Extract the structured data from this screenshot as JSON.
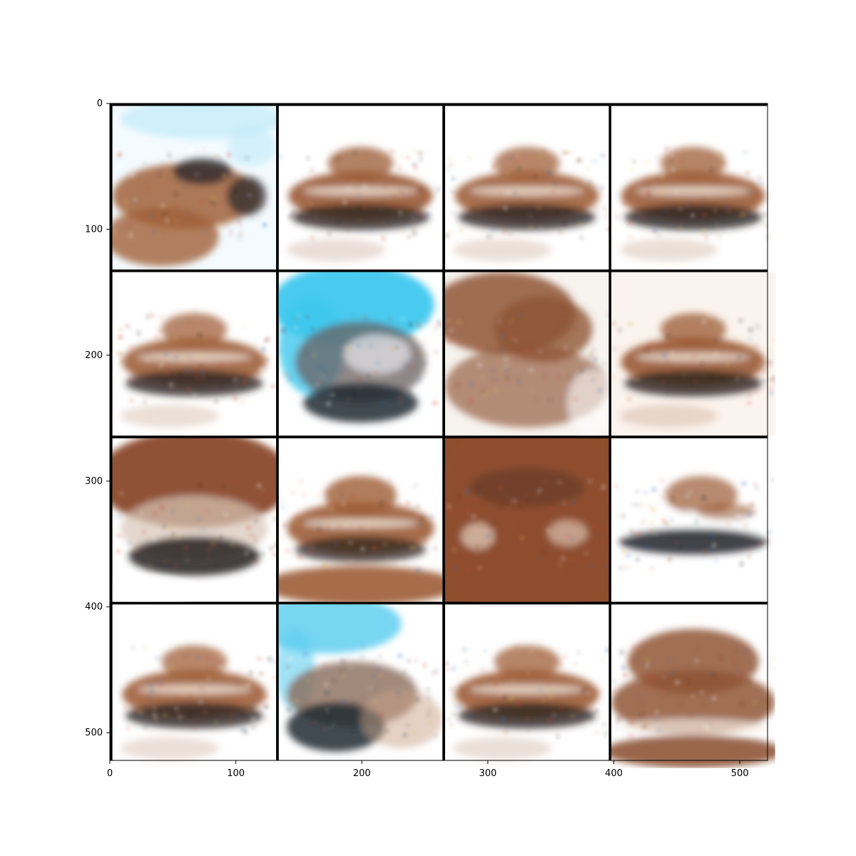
{
  "chart_data": {
    "type": "image_grid",
    "title": "",
    "xlabel": "",
    "ylabel": "",
    "xlim": [
      0,
      522
    ],
    "ylim": [
      522,
      0
    ],
    "x_ticks": [
      0,
      100,
      200,
      300,
      400,
      500
    ],
    "y_ticks": [
      0,
      100,
      200,
      300,
      400,
      500
    ],
    "grid": {
      "rows": 4,
      "cols": 4,
      "tile_size_data_units": 130,
      "padding_data_units": 2
    },
    "padding_color": "#000000",
    "tiles": [
      {
        "row": 0,
        "col": 0,
        "subject": "vehicle",
        "background": "#f4fbff",
        "sky_tint": "#bfe9f8",
        "body_color": "#a0603a",
        "dark_color": "#2c2a2c",
        "style": "blurry-car-left",
        "seed": 11
      },
      {
        "row": 0,
        "col": 1,
        "subject": "tank",
        "background": "#ffffff",
        "sky_tint": "#ffffff",
        "body_color": "#9a5a33",
        "dark_color": "#2a2320",
        "style": "tank",
        "seed": 12
      },
      {
        "row": 0,
        "col": 2,
        "subject": "tank",
        "background": "#ffffff",
        "sky_tint": "#ffffff",
        "body_color": "#a0603a",
        "dark_color": "#2a2320",
        "style": "tank",
        "seed": 13
      },
      {
        "row": 0,
        "col": 3,
        "subject": "tank",
        "background": "#ffffff",
        "sky_tint": "#ffffff",
        "body_color": "#9d5d36",
        "dark_color": "#272020",
        "style": "tank",
        "seed": 14
      },
      {
        "row": 1,
        "col": 0,
        "subject": "tank",
        "background": "#ffffff",
        "sky_tint": "#ffffff",
        "body_color": "#a0603a",
        "dark_color": "#2a2320",
        "style": "tank",
        "seed": 21
      },
      {
        "row": 1,
        "col": 1,
        "subject": "vehicle",
        "background": "#ffffff",
        "sky_tint": "#3ec8ee",
        "body_color": "#6a6060",
        "dark_color": "#1d2a33",
        "style": "blue-sky",
        "seed": 22
      },
      {
        "row": 1,
        "col": 2,
        "subject": "vehicle",
        "background": "#f7f3ef",
        "sky_tint": "#ffffff",
        "body_color": "#8f5536",
        "dark_color": "#5a3a2a",
        "style": "brown-blob",
        "seed": 23
      },
      {
        "row": 1,
        "col": 3,
        "subject": "tank",
        "background": "#fbf4ee",
        "sky_tint": "#ffffff",
        "body_color": "#9a5a33",
        "dark_color": "#2a2320",
        "style": "tank",
        "seed": 24
      },
      {
        "row": 2,
        "col": 0,
        "subject": "vehicle",
        "background": "#ffffff",
        "sky_tint": "#8a4a2a",
        "body_color": "#8a4a2a",
        "dark_color": "#241e20",
        "style": "brown-top",
        "seed": 31
      },
      {
        "row": 2,
        "col": 1,
        "subject": "tank",
        "background": "#ffffff",
        "sky_tint": "#ffffff",
        "body_color": "#9d5d36",
        "dark_color": "#2c241f",
        "style": "tank-ground",
        "seed": 32
      },
      {
        "row": 2,
        "col": 2,
        "subject": "vehicle",
        "background": "#8e4e2e",
        "sky_tint": "#8e4e2e",
        "body_color": "#8e4e2e",
        "dark_color": "#5a3624",
        "style": "full-brown",
        "seed": 33
      },
      {
        "row": 2,
        "col": 3,
        "subject": "tank",
        "background": "#ffffff",
        "sky_tint": "#ffffff",
        "body_color": "#9a5a33",
        "dark_color": "#1e2228",
        "style": "tank-flat",
        "seed": 34
      },
      {
        "row": 3,
        "col": 0,
        "subject": "tank",
        "background": "#ffffff",
        "sky_tint": "#ffffff",
        "body_color": "#a0603a",
        "dark_color": "#2a2320",
        "style": "tank",
        "seed": 41
      },
      {
        "row": 3,
        "col": 1,
        "subject": "vehicle",
        "background": "#ffffff",
        "sky_tint": "#5fcff0",
        "body_color": "#8a6a5a",
        "dark_color": "#1d2a33",
        "style": "blue-left",
        "seed": 42
      },
      {
        "row": 3,
        "col": 2,
        "subject": "tank",
        "background": "#ffffff",
        "sky_tint": "#ffffff",
        "body_color": "#9d5d36",
        "dark_color": "#2a2320",
        "style": "tank",
        "seed": 43
      },
      {
        "row": 3,
        "col": 3,
        "subject": "vehicle",
        "background": "#ffffff",
        "sky_tint": "#ffffff",
        "body_color": "#8f5536",
        "dark_color": "#4a2e22",
        "style": "brown-box",
        "seed": 44
      }
    ]
  }
}
